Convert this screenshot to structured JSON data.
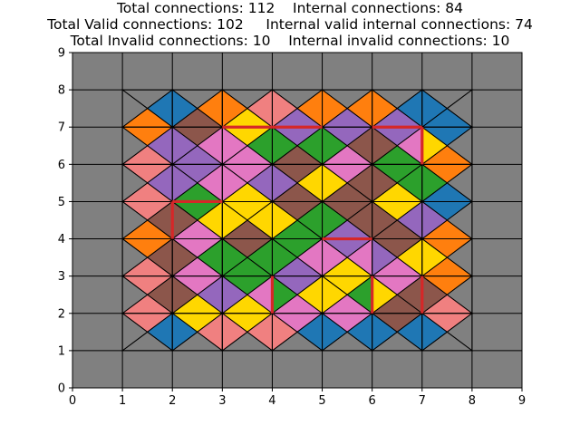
{
  "title": {
    "line1": "Total connections: 112    Internal connections: 84",
    "line2": "Total Valid connections: 102     Internal valid internal connections: 74",
    "line3": "Total Invalid connections: 10    Internal invalid connections: 10"
  },
  "chart_data": {
    "type": "tile_grid",
    "xlim": [
      0,
      9
    ],
    "ylim": [
      0,
      9
    ],
    "x_ticks": [
      "0",
      "1",
      "2",
      "3",
      "4",
      "5",
      "6",
      "7",
      "8",
      "9"
    ],
    "y_ticks": [
      "0",
      "1",
      "2",
      "3",
      "4",
      "5",
      "6",
      "7",
      "8",
      "9"
    ],
    "colors": {
      "background": "#808080",
      "blue": "#1f77b4",
      "orange": "#ff7f0e",
      "green": "#2ca02c",
      "purple": "#9467bd",
      "brown": "#8c564b",
      "pink": "#e377c2",
      "salmon": "#f08080",
      "yellow": "#ffd700",
      "invalid_edge": "#d62728"
    },
    "tile_note": "Each board cell (x 1-7, y 1-7) is split into 4 triangles: top, right, bottom, left.",
    "tiles": [
      {
        "x": 1,
        "y": 7,
        "t": "gray",
        "r": "blue",
        "b": "orange",
        "l": "gray"
      },
      {
        "x": 2,
        "y": 7,
        "t": "gray",
        "r": "orange",
        "b": "brown",
        "l": "blue"
      },
      {
        "x": 3,
        "y": 7,
        "t": "gray",
        "r": "salmon",
        "b": "yellow",
        "l": "orange"
      },
      {
        "x": 4,
        "y": 7,
        "t": "gray",
        "r": "orange",
        "b": "purple",
        "l": "salmon"
      },
      {
        "x": 5,
        "y": 7,
        "t": "gray",
        "r": "orange",
        "b": "purple",
        "l": "orange"
      },
      {
        "x": 6,
        "y": 7,
        "t": "gray",
        "r": "blue",
        "b": "purple",
        "l": "orange"
      },
      {
        "x": 7,
        "y": 7,
        "t": "gray",
        "r": "gray",
        "b": "blue",
        "l": "blue"
      },
      {
        "x": 1,
        "y": 6,
        "t": "orange",
        "r": "purple",
        "b": "salmon",
        "l": "gray"
      },
      {
        "x": 2,
        "y": 6,
        "t": "brown",
        "r": "pink",
        "b": "purple",
        "l": "purple"
      },
      {
        "x": 3,
        "y": 6,
        "t": "yellow",
        "r": "green",
        "b": "pink",
        "l": "pink"
      },
      {
        "x": 4,
        "y": 6,
        "t": "purple",
        "r": "green",
        "b": "brown",
        "l": "green"
      },
      {
        "x": 5,
        "y": 6,
        "t": "purple",
        "r": "brown",
        "b": "pink",
        "l": "green"
      },
      {
        "x": 6,
        "y": 6,
        "t": "purple",
        "r": "pink",
        "b": "green",
        "l": "brown"
      },
      {
        "x": 7,
        "y": 6,
        "t": "blue",
        "r": "gray",
        "b": "orange",
        "l": "yellow"
      },
      {
        "x": 1,
        "y": 5,
        "t": "salmon",
        "r": "purple",
        "b": "salmon",
        "l": "gray"
      },
      {
        "x": 2,
        "y": 5,
        "t": "purple",
        "r": "pink",
        "b": "green",
        "l": "purple"
      },
      {
        "x": 3,
        "y": 5,
        "t": "pink",
        "r": "purple",
        "b": "yellow",
        "l": "pink"
      },
      {
        "x": 4,
        "y": 5,
        "t": "brown",
        "r": "yellow",
        "b": "brown",
        "l": "purple"
      },
      {
        "x": 5,
        "y": 5,
        "t": "pink",
        "r": "brown",
        "b": "brown",
        "l": "yellow"
      },
      {
        "x": 6,
        "y": 5,
        "t": "green",
        "r": "green",
        "b": "yellow",
        "l": "brown"
      },
      {
        "x": 7,
        "y": 5,
        "t": "orange",
        "r": "gray",
        "b": "blue",
        "l": "green"
      },
      {
        "x": 1,
        "y": 4,
        "t": "salmon",
        "r": "brown",
        "b": "orange",
        "l": "gray"
      },
      {
        "x": 2,
        "y": 4,
        "t": "green",
        "r": "yellow",
        "b": "pink",
        "l": "brown"
      },
      {
        "x": 3,
        "y": 4,
        "t": "yellow",
        "r": "yellow",
        "b": "brown",
        "l": "yellow"
      },
      {
        "x": 4,
        "y": 4,
        "t": "brown",
        "r": "green",
        "b": "green",
        "l": "yellow"
      },
      {
        "x": 5,
        "y": 4,
        "t": "brown",
        "r": "brown",
        "b": "purple",
        "l": "green"
      },
      {
        "x": 6,
        "y": 4,
        "t": "yellow",
        "r": "purple",
        "b": "brown",
        "l": "brown"
      },
      {
        "x": 7,
        "y": 4,
        "t": "blue",
        "r": "gray",
        "b": "orange",
        "l": "purple"
      },
      {
        "x": 1,
        "y": 3,
        "t": "orange",
        "r": "brown",
        "b": "salmon",
        "l": "gray"
      },
      {
        "x": 2,
        "y": 3,
        "t": "pink",
        "r": "green",
        "b": "pink",
        "l": "brown"
      },
      {
        "x": 3,
        "y": 3,
        "t": "brown",
        "r": "green",
        "b": "green",
        "l": "green"
      },
      {
        "x": 4,
        "y": 3,
        "t": "green",
        "r": "pink",
        "b": "purple",
        "l": "green"
      },
      {
        "x": 5,
        "y": 3,
        "t": "purple",
        "r": "pink",
        "b": "yellow",
        "l": "pink"
      },
      {
        "x": 6,
        "y": 3,
        "t": "brown",
        "r": "yellow",
        "b": "pink",
        "l": "purple"
      },
      {
        "x": 7,
        "y": 3,
        "t": "orange",
        "r": "gray",
        "b": "orange",
        "l": "yellow"
      },
      {
        "x": 1,
        "y": 2,
        "t": "salmon",
        "r": "brown",
        "b": "salmon",
        "l": "gray"
      },
      {
        "x": 2,
        "y": 2,
        "t": "pink",
        "r": "purple",
        "b": "yellow",
        "l": "brown"
      },
      {
        "x": 3,
        "y": 2,
        "t": "green",
        "r": "pink",
        "b": "yellow",
        "l": "purple"
      },
      {
        "x": 4,
        "y": 2,
        "t": "purple",
        "r": "yellow",
        "b": "pink",
        "l": "green"
      },
      {
        "x": 5,
        "y": 2,
        "t": "yellow",
        "r": "green",
        "b": "pink",
        "l": "yellow"
      },
      {
        "x": 6,
        "y": 2,
        "t": "pink",
        "r": "brown",
        "b": "brown",
        "l": "yellow"
      },
      {
        "x": 7,
        "y": 2,
        "t": "orange",
        "r": "gray",
        "b": "salmon",
        "l": "brown"
      },
      {
        "x": 1,
        "y": 1,
        "t": "salmon",
        "r": "blue",
        "b": "gray",
        "l": "gray"
      },
      {
        "x": 2,
        "y": 1,
        "t": "yellow",
        "r": "salmon",
        "b": "gray",
        "l": "blue"
      },
      {
        "x": 3,
        "y": 1,
        "t": "yellow",
        "r": "salmon",
        "b": "gray",
        "l": "salmon"
      },
      {
        "x": 4,
        "y": 1,
        "t": "pink",
        "r": "blue",
        "b": "gray",
        "l": "salmon"
      },
      {
        "x": 5,
        "y": 1,
        "t": "pink",
        "r": "blue",
        "b": "gray",
        "l": "blue"
      },
      {
        "x": 6,
        "y": 1,
        "t": "brown",
        "r": "blue",
        "b": "gray",
        "l": "blue"
      },
      {
        "x": 7,
        "y": 1,
        "t": "salmon",
        "r": "gray",
        "b": "gray",
        "l": "blue"
      }
    ],
    "invalid_edges": [
      {
        "x1": 2,
        "y1": 4,
        "x2": 2,
        "y2": 5
      },
      {
        "x1": 2,
        "y1": 5,
        "x2": 3,
        "y2": 5
      },
      {
        "x1": 3,
        "y1": 7,
        "x2": 4,
        "y2": 7
      },
      {
        "x1": 4,
        "y1": 7,
        "x2": 5,
        "y2": 7
      },
      {
        "x1": 6,
        "y1": 7,
        "x2": 7,
        "y2": 7
      },
      {
        "x1": 7,
        "y1": 6,
        "x2": 7,
        "y2": 7
      },
      {
        "x1": 5,
        "y1": 4,
        "x2": 6,
        "y2": 4
      },
      {
        "x1": 4,
        "y1": 2,
        "x2": 4,
        "y2": 3
      },
      {
        "x1": 6,
        "y1": 2,
        "x2": 6,
        "y2": 3
      },
      {
        "x1": 7,
        "y1": 2,
        "x2": 7,
        "y2": 3
      }
    ]
  }
}
